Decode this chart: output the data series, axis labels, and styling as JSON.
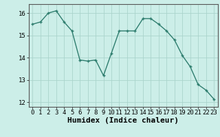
{
  "x": [
    0,
    1,
    2,
    3,
    4,
    5,
    6,
    7,
    8,
    9,
    10,
    11,
    12,
    13,
    14,
    15,
    16,
    17,
    18,
    19,
    20,
    21,
    22,
    23
  ],
  "y": [
    15.5,
    15.6,
    16.0,
    16.1,
    15.6,
    15.2,
    13.9,
    13.85,
    13.9,
    13.2,
    14.2,
    15.2,
    15.2,
    15.2,
    15.75,
    15.75,
    15.5,
    15.2,
    14.8,
    14.1,
    13.6,
    12.8,
    12.55,
    12.15
  ],
  "xlabel": "Humidex (Indice chaleur)",
  "ylim": [
    11.8,
    16.4
  ],
  "xlim": [
    -0.5,
    23.5
  ],
  "bg_color": "#cceee8",
  "grid_color": "#aad4cc",
  "line_color": "#2e7d6e",
  "marker_color": "#2e7d6e",
  "yticks": [
    12,
    13,
    14,
    15,
    16
  ],
  "xticks": [
    0,
    1,
    2,
    3,
    4,
    5,
    6,
    7,
    8,
    9,
    10,
    11,
    12,
    13,
    14,
    15,
    16,
    17,
    18,
    19,
    20,
    21,
    22,
    23
  ],
  "tick_fontsize": 6.5,
  "xlabel_fontsize": 8
}
